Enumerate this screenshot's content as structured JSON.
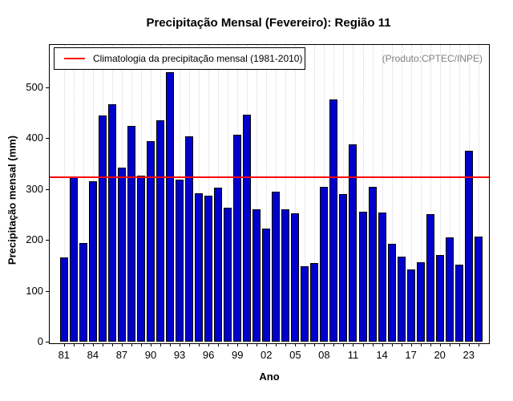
{
  "chart_data": {
    "type": "bar",
    "title": "Precipitação Mensal (Fevereiro): Região 11",
    "xlabel": "Ano",
    "ylabel": "Precipitação mensal (mm)",
    "annotation": "(Produto:CPTEC/INPE)",
    "legend": {
      "label": "Climatologia da precipitação mensal (1981-2010)",
      "line_color": "#ff0000",
      "position": "top-left"
    },
    "climatology_value": 325,
    "years": [
      1981,
      1982,
      1983,
      1984,
      1985,
      1986,
      1987,
      1988,
      1989,
      1990,
      1991,
      1992,
      1993,
      1994,
      1995,
      1996,
      1997,
      1998,
      1999,
      2000,
      2001,
      2002,
      2003,
      2004,
      2005,
      2006,
      2007,
      2008,
      2009,
      2010,
      2011,
      2012,
      2013,
      2014,
      2015,
      2016,
      2017,
      2018,
      2019,
      2020,
      2021,
      2022,
      2023,
      2024
    ],
    "values": [
      166,
      325,
      194,
      315,
      445,
      467,
      343,
      424,
      327,
      394,
      435,
      530,
      319,
      404,
      292,
      287,
      303,
      263,
      407,
      446,
      261,
      223,
      295,
      261,
      253,
      148,
      155,
      304,
      477,
      290,
      388,
      256,
      305,
      254,
      192,
      167,
      142,
      156,
      251,
      171,
      205,
      151,
      376,
      207
    ],
    "x_tick_labels": [
      "81",
      "84",
      "87",
      "90",
      "93",
      "96",
      "99",
      "02",
      "05",
      "08",
      "11",
      "14",
      "17",
      "20",
      "23"
    ],
    "x_tick_label_step": 3,
    "y_ticks": [
      0,
      100,
      200,
      300,
      400,
      500
    ],
    "ylim": [
      0,
      585
    ],
    "grid": "vertical-dotted",
    "bar_color": "#0000cd",
    "bar_border_color": "#000000",
    "line_color": "#ff0000"
  }
}
